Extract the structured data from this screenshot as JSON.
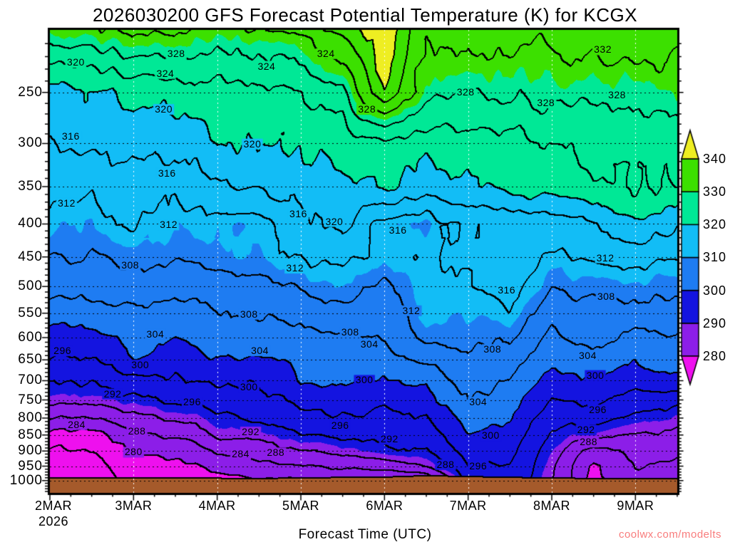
{
  "title": "2026030200 GFS Forecast Potential Temperature (K) for KCGX",
  "x_axis": {
    "label": "Forecast Time (UTC)",
    "tick_labels": [
      "2MAR",
      "3MAR",
      "4MAR",
      "5MAR",
      "6MAR",
      "7MAR",
      "8MAR",
      "9MAR"
    ],
    "year": "2026"
  },
  "y_axis": {
    "tick_labels": [
      250,
      300,
      350,
      400,
      450,
      500,
      550,
      600,
      650,
      700,
      750,
      800,
      850,
      900,
      950,
      1000
    ]
  },
  "colorbar": {
    "tick_labels": [
      340,
      330,
      320,
      310,
      300,
      290,
      280
    ]
  },
  "watermark": "coolwx.com/modelts",
  "chart_data": {
    "type": "contour",
    "units": "K",
    "time_range_days": [
      0,
      7.5
    ],
    "time_step_days": 0.5,
    "pressure_levels": [
      200,
      250,
      300,
      350,
      400,
      450,
      500,
      550,
      600,
      650,
      700,
      750,
      800,
      850,
      900,
      950,
      1000,
      1050
    ],
    "theta_grid": [
      [
        330,
        331,
        333,
        332,
        331,
        332,
        333,
        337,
        344,
        332,
        334,
        334,
        333,
        334,
        335,
        334
      ],
      [
        318,
        319.5,
        321,
        322,
        322.5,
        322,
        324,
        327,
        340,
        329,
        327.5,
        328.5,
        329.5,
        328.5,
        329,
        330
      ],
      [
        316,
        316.5,
        318,
        317,
        320.5,
        320,
        320.5,
        321.5,
        323.5,
        321,
        322,
        323,
        324,
        325,
        325.5,
        326
      ],
      [
        312.8,
        313,
        314,
        313.5,
        315,
        316.5,
        317.5,
        318.5,
        321,
        317.5,
        319.5,
        321.5,
        322.5,
        323.5,
        324,
        324.5
      ],
      [
        310.4,
        310,
        312,
        310.5,
        311,
        310.5,
        315,
        316.5,
        311,
        309.5,
        312.5,
        313,
        313.5,
        316,
        320,
        317
      ],
      [
        308.3,
        308,
        309,
        308.5,
        309.5,
        310,
        312.5,
        313,
        310.5,
        312,
        312.5,
        315,
        311.5,
        312.5,
        313.5,
        312
      ],
      [
        306,
        305.5,
        306.5,
        305.5,
        306,
        307,
        308.5,
        310,
        307,
        311.5,
        311.5,
        314,
        308.5,
        309,
        309.5,
        309
      ],
      [
        302,
        302.5,
        303,
        302.5,
        303.5,
        304.5,
        305.5,
        307,
        305,
        311,
        310,
        311.5,
        306,
        306.5,
        307,
        306.5
      ],
      [
        298,
        298.5,
        301,
        300,
        302,
        301.5,
        302.5,
        303.5,
        304,
        309.5,
        308.5,
        308.5,
        303.5,
        305.5,
        302.5,
        303.5
      ],
      [
        295.5,
        295.5,
        299.8,
        298,
        300,
        299.5,
        300.5,
        301.5,
        302,
        305,
        307,
        306,
        301.5,
        302,
        300.5,
        301.5
      ],
      [
        292.5,
        292.5,
        295,
        295.5,
        297,
        296,
        300.5,
        301,
        299.5,
        300.5,
        305.5,
        304,
        298.5,
        299.5,
        297.5,
        299.5
      ],
      [
        289.5,
        289,
        291,
        293,
        293.5,
        294.5,
        297.5,
        298.5,
        297,
        298.5,
        304,
        302,
        296,
        297,
        294,
        293.5
      ],
      [
        284,
        283.5,
        287,
        288.5,
        291,
        292.5,
        295,
        296,
        294.5,
        296,
        301.5,
        300.5,
        293.5,
        293.5,
        291,
        290
      ],
      [
        278.5,
        278,
        283.5,
        284.5,
        288.5,
        289.5,
        292,
        293.5,
        292.5,
        294,
        299.5,
        299,
        291.5,
        289.5,
        288,
        287
      ],
      [
        275.5,
        276,
        280.5,
        281,
        284.5,
        286,
        288,
        289.5,
        291,
        292,
        297.5,
        297.5,
        290,
        282.5,
        285.5,
        285
      ],
      [
        273.5,
        274.5,
        278.5,
        279,
        281,
        283,
        284,
        285,
        285.5,
        288,
        295.5,
        296,
        289,
        279,
        284,
        283.5
      ],
      [
        272.5,
        273.5,
        277.5,
        278,
        278.5,
        279.5,
        279.5,
        280.5,
        279.5,
        279.5,
        293,
        294.5,
        288.5,
        278.5,
        283,
        282.5
      ],
      [
        272,
        273,
        277,
        277.5,
        278,
        279,
        279,
        280,
        279,
        279,
        292.5,
        294,
        288,
        278,
        282.5,
        282
      ]
    ],
    "surface_pressure_hpa": [
      992,
      991,
      992,
      993,
      993,
      994,
      992,
      990,
      989,
      984,
      987,
      990,
      992,
      994,
      995,
      995
    ],
    "contour_interval_k": 4,
    "fill_interval_k": 10,
    "band_breaks": [
      280,
      290,
      300,
      310,
      320,
      330,
      340
    ],
    "band_colors": [
      "#ee10ee",
      "#8c1ee8",
      "#1414e0",
      "#1e7cf2",
      "#12bdf6",
      "#00e896",
      "#3ce000",
      "#eeee22"
    ],
    "ground_color": "#a55a2b",
    "contour_labels": [
      {
        "t": 0.31,
        "p": 225,
        "v": 320
      },
      {
        "t": 1.51,
        "p": 218,
        "v": 328
      },
      {
        "t": 1.38,
        "p": 234,
        "v": 324
      },
      {
        "t": 2.59,
        "p": 228,
        "v": 324
      },
      {
        "t": 3.3,
        "p": 218,
        "v": 324
      },
      {
        "t": 3.79,
        "p": 266,
        "v": 328
      },
      {
        "t": 6.61,
        "p": 215,
        "v": 332
      },
      {
        "t": 4.97,
        "p": 250,
        "v": 328
      },
      {
        "t": 5.93,
        "p": 260,
        "v": 328
      },
      {
        "t": 6.78,
        "p": 253,
        "v": 328
      },
      {
        "t": 1.36,
        "p": 266,
        "v": 320
      },
      {
        "t": 0.25,
        "p": 293,
        "v": 316
      },
      {
        "t": 2.42,
        "p": 301,
        "v": 320
      },
      {
        "t": 1.4,
        "p": 334,
        "v": 316
      },
      {
        "t": 0.2,
        "p": 372,
        "v": 312
      },
      {
        "t": 2.97,
        "p": 387,
        "v": 316
      },
      {
        "t": 3.4,
        "p": 397,
        "v": 320
      },
      {
        "t": 1.42,
        "p": 402,
        "v": 312
      },
      {
        "t": 4.16,
        "p": 410,
        "v": 316
      },
      {
        "t": 0.96,
        "p": 464,
        "v": 308
      },
      {
        "t": 2.93,
        "p": 469,
        "v": 312
      },
      {
        "t": 5.46,
        "p": 507,
        "v": 316
      },
      {
        "t": 4.32,
        "p": 546,
        "v": 312
      },
      {
        "t": 6.64,
        "p": 452,
        "v": 312
      },
      {
        "t": 6.65,
        "p": 519,
        "v": 308
      },
      {
        "t": 2.38,
        "p": 553,
        "v": 308
      },
      {
        "t": 6.43,
        "p": 641,
        "v": 304
      },
      {
        "t": 3.59,
        "p": 590,
        "v": 308
      },
      {
        "t": 3.82,
        "p": 615,
        "v": 304
      },
      {
        "t": 2.51,
        "p": 630,
        "v": 304
      },
      {
        "t": 1.26,
        "p": 594,
        "v": 304
      },
      {
        "t": 1.08,
        "p": 663,
        "v": 300
      },
      {
        "t": 0.15,
        "p": 630,
        "v": 296
      },
      {
        "t": 3.76,
        "p": 700,
        "v": 300
      },
      {
        "t": 2.38,
        "p": 718,
        "v": 300
      },
      {
        "t": 5.29,
        "p": 627,
        "v": 308
      },
      {
        "t": 5.12,
        "p": 757,
        "v": 304
      },
      {
        "t": 5.27,
        "p": 853,
        "v": 300
      },
      {
        "t": 6.52,
        "p": 688,
        "v": 300
      },
      {
        "t": 6.55,
        "p": 778,
        "v": 296
      },
      {
        "t": 6.41,
        "p": 836,
        "v": 292
      },
      {
        "t": 6.44,
        "p": 873,
        "v": 288
      },
      {
        "t": 1.7,
        "p": 757,
        "v": 296
      },
      {
        "t": 0.75,
        "p": 735,
        "v": 292
      },
      {
        "t": 2.4,
        "p": 842,
        "v": 292
      },
      {
        "t": 0.32,
        "p": 820,
        "v": 284
      },
      {
        "t": 1.04,
        "p": 840,
        "v": 288
      },
      {
        "t": 1.0,
        "p": 905,
        "v": 280
      },
      {
        "t": 2.28,
        "p": 912,
        "v": 284
      },
      {
        "t": 2.7,
        "p": 907,
        "v": 288
      },
      {
        "t": 3.47,
        "p": 822,
        "v": 296
      },
      {
        "t": 4.06,
        "p": 864,
        "v": 292
      },
      {
        "t": 4.73,
        "p": 946,
        "v": 288
      },
      {
        "t": 5.12,
        "p": 951,
        "v": 296
      }
    ]
  }
}
